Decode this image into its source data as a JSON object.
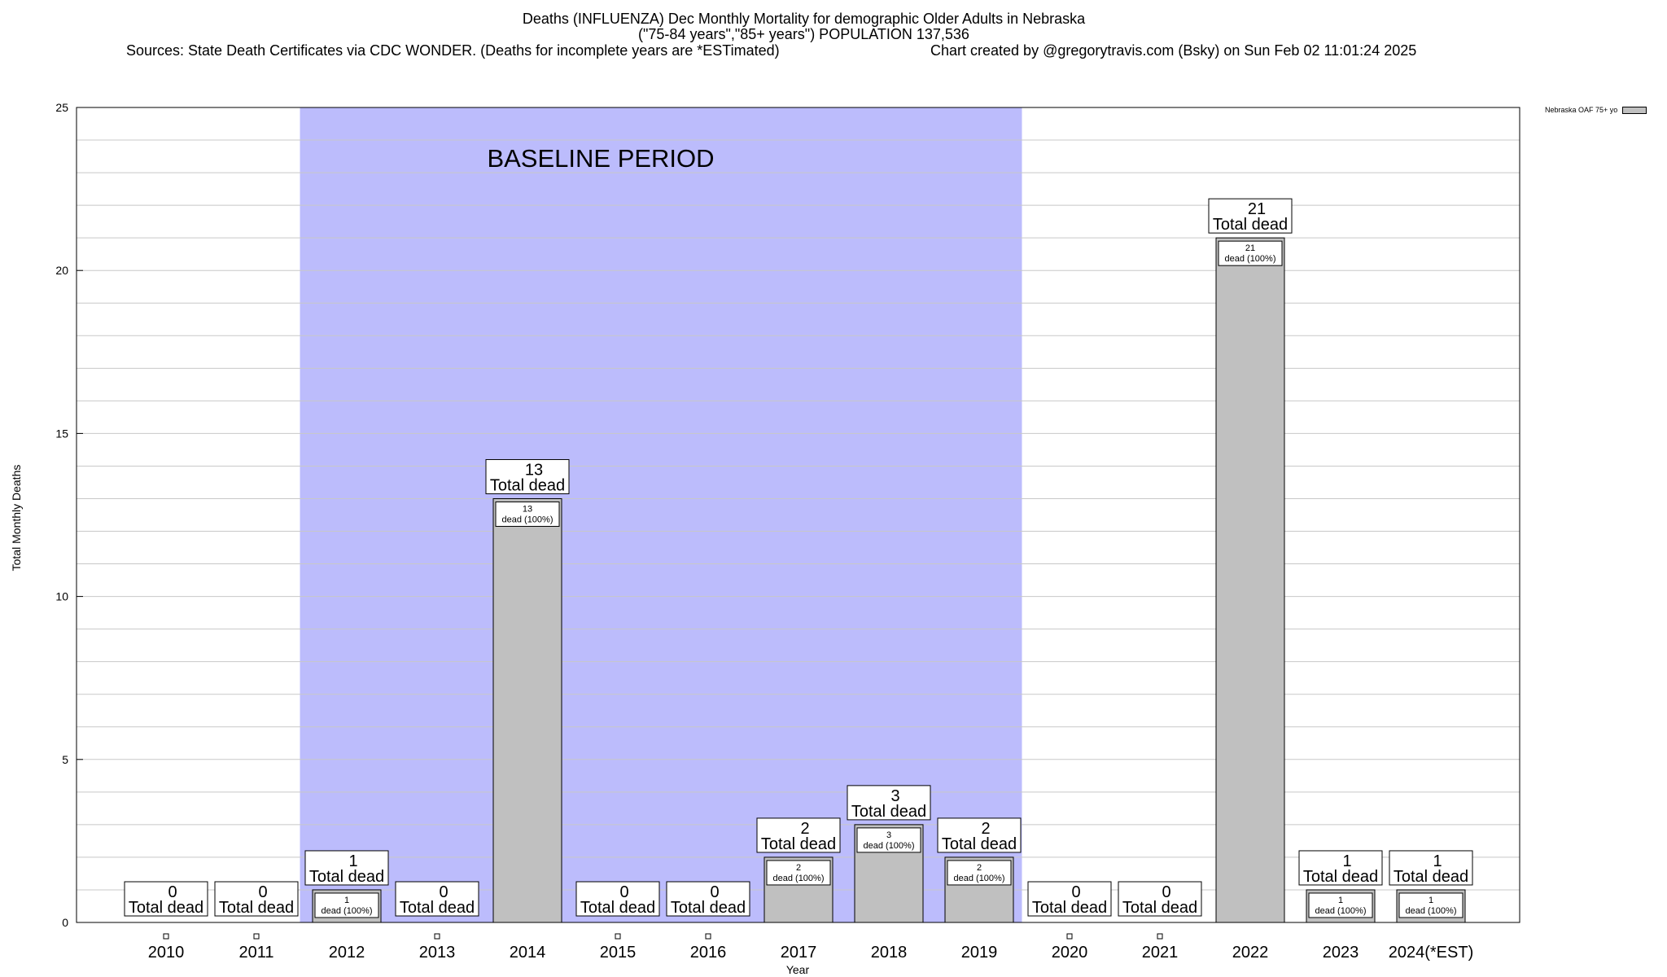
{
  "title": {
    "line1": "Deaths (INFLUENZA) Dec Monthly Mortality for demographic Older Adults in Nebraska",
    "line2": "(\"75-84 years\",\"85+ years\") POPULATION 137,536",
    "sources": "Sources: State Death Certificates via CDC WONDER. (Deaths for incomplete years are *ESTimated)",
    "credit": "Chart created by @gregorytravis.com (Bsky) on Sun Feb 02 11:01:24 2025"
  },
  "legend": {
    "label": "Nebraska OAF 75+ yo"
  },
  "colors": {
    "bar": "#c0c0c0",
    "baseline": "#bcbcfc",
    "grid": "#c8c8c8",
    "marker_fill": "#ffffff"
  },
  "chart_data": {
    "type": "bar",
    "xlabel": "Year",
    "ylabel": "Total Monthly Deaths",
    "ylim": [
      0,
      25
    ],
    "yticks": [
      0,
      5,
      10,
      15,
      20,
      25
    ],
    "grid": true,
    "legend_position": "top-right",
    "categories": [
      "2010",
      "2011",
      "2012",
      "2013",
      "2014",
      "2015",
      "2016",
      "2017",
      "2018",
      "2019",
      "2020",
      "2021",
      "2022",
      "2023",
      "2024(*EST)"
    ],
    "series": [
      {
        "name": "Nebraska OAF 75+ yo",
        "values": [
          0,
          0,
          1,
          0,
          13,
          0,
          0,
          2,
          3,
          2,
          0,
          0,
          21,
          1,
          1
        ]
      }
    ],
    "total_label_suffix": "Total dead",
    "inner_label_suffix": "dead (100%)",
    "baseline_period": {
      "label": "BASELINE PERIOD",
      "from": "2012",
      "to": "2019"
    }
  }
}
